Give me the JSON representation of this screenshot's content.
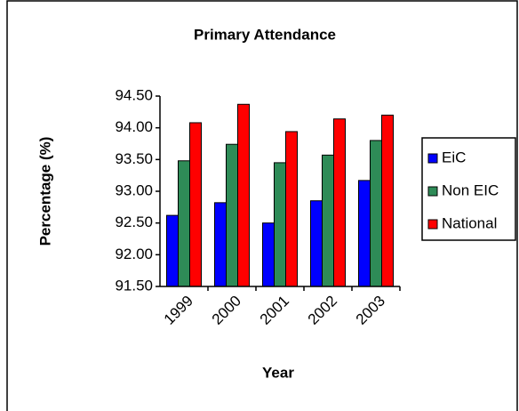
{
  "chart_data": {
    "type": "bar",
    "title": "Primary Attendance",
    "xlabel": "Year",
    "ylabel": "Percentage (%)",
    "categories": [
      "1999",
      "2000",
      "2001",
      "2002",
      "2003"
    ],
    "series": [
      {
        "name": "EiC",
        "color": "#0000ff",
        "values": [
          92.62,
          92.82,
          92.5,
          92.85,
          93.17
        ]
      },
      {
        "name": "Non EIC",
        "color": "#2e8b57",
        "values": [
          93.48,
          93.74,
          93.45,
          93.57,
          93.8
        ]
      },
      {
        "name": "National",
        "color": "#ff0000",
        "values": [
          94.08,
          94.37,
          93.94,
          94.14,
          94.2
        ]
      }
    ],
    "ylim": [
      91.5,
      94.5
    ],
    "yticks": [
      {
        "value": 91.5,
        "label": "91.50"
      },
      {
        "value": 92,
        "label": "92.00"
      },
      {
        "value": 92.5,
        "label": "92.50"
      },
      {
        "value": 93,
        "label": "93.00"
      },
      {
        "value": 93.5,
        "label": "93.50"
      },
      {
        "value": 94,
        "label": "94.00"
      },
      {
        "value": 94.5,
        "label": "94.50"
      }
    ],
    "legend": "right"
  }
}
